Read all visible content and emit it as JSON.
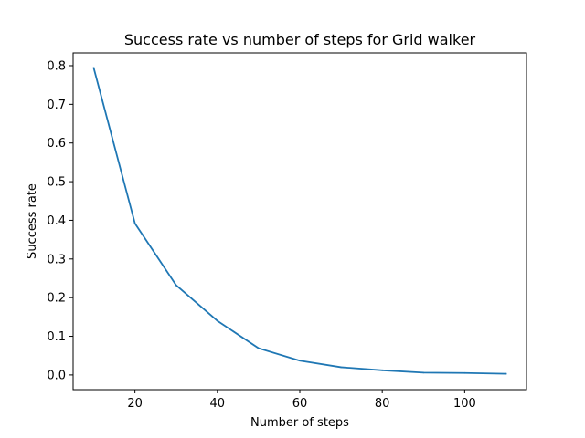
{
  "chart_data": {
    "type": "line",
    "title": "Success rate vs number of steps for Grid walker",
    "xlabel": "Number of steps",
    "ylabel": "Success rate",
    "xlim": [
      5,
      115
    ],
    "ylim": [
      -0.038,
      0.833
    ],
    "xticks": [
      20,
      40,
      60,
      80,
      100
    ],
    "yticks": [
      0.0,
      0.1,
      0.2,
      0.3,
      0.4,
      0.5,
      0.6,
      0.7,
      0.8
    ],
    "grid": false,
    "series": [
      {
        "color": "#1f77b4",
        "x": [
          10,
          20,
          30,
          40,
          50,
          60,
          70,
          80,
          90,
          100,
          110
        ],
        "values": [
          0.794,
          0.392,
          0.232,
          0.14,
          0.069,
          0.037,
          0.02,
          0.012,
          0.006,
          0.005,
          0.003
        ]
      }
    ]
  }
}
